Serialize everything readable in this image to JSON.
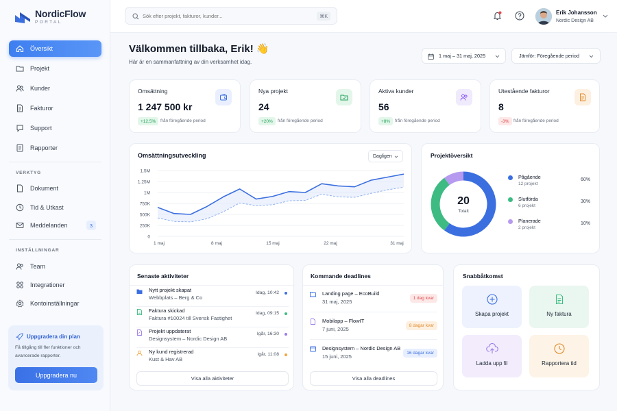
{
  "app": {
    "name": "NordicFlow",
    "sub": "PORTAL"
  },
  "search": {
    "placeholder": "Sök efter projekt, fakturor, kunder...",
    "shortcut": "⌘K"
  },
  "user": {
    "name": "Erik Johansson",
    "company": "Nordic Design AB"
  },
  "nav_main": [
    {
      "label": "Översikt",
      "icon": "home-icon"
    },
    {
      "label": "Projekt",
      "icon": "folder-icon"
    },
    {
      "label": "Kunder",
      "icon": "users-icon"
    },
    {
      "label": "Fakturor",
      "icon": "invoice-icon"
    },
    {
      "label": "Support",
      "icon": "help-icon"
    },
    {
      "label": "Rapporter",
      "icon": "report-icon"
    }
  ],
  "tools_title": "VERKTYG",
  "nav_tools": [
    {
      "label": "Dokument",
      "icon": "document-icon"
    },
    {
      "label": "Tid & Utkast",
      "icon": "clock-icon"
    },
    {
      "label": "Meddelanden",
      "icon": "mail-icon",
      "badge": "3"
    }
  ],
  "settings_title": "INSTÄLLNINGAR",
  "nav_settings": [
    {
      "label": "Team",
      "icon": "team-icon"
    },
    {
      "label": "Integrationer",
      "icon": "integrations-icon"
    },
    {
      "label": "Kontoinställningar",
      "icon": "settings-icon"
    }
  ],
  "upgrade": {
    "title": "Uppgradera din plan",
    "text1": "Få tillgång till fler funktioner och",
    "text2": "avancerade rapporter.",
    "button": "Uppgradera nu"
  },
  "welcome": {
    "title": "Välkommen tillbaka, Erik! 👋",
    "subtitle": "Här är en sammanfattning av din verksamhet idag."
  },
  "filters": {
    "date_range": "1 maj – 31 maj, 2025",
    "compare": "Jämför: Föregående period"
  },
  "kpis": [
    {
      "title": "Omsättning",
      "value": "1 247 500 kr",
      "change": "+12,5%",
      "note": "från föregående period",
      "positive": true
    },
    {
      "title": "Nya projekt",
      "value": "24",
      "change": "+20%",
      "note": "från föregående period",
      "positive": true
    },
    {
      "title": "Aktiva kunder",
      "value": "56",
      "change": "+8%",
      "note": "från föregående period",
      "positive": true
    },
    {
      "title": "Utestående fakturor",
      "value": "8",
      "change": "-3%",
      "note": "från föregående period",
      "positive": false
    }
  ],
  "revenue_chart": {
    "title": "Omsättningsutveckling",
    "period": "Dagligen"
  },
  "chart_data": [
    {
      "type": "line",
      "title": "Omsättningsutveckling",
      "y_ticks": [
        "1.5M",
        "1.25M",
        "1M",
        "750K",
        "500K",
        "250K",
        "0"
      ],
      "x_ticks": [
        "1 maj",
        "8 maj",
        "15 maj",
        "22 maj",
        "31 maj"
      ],
      "ylim": [
        0,
        1500000
      ],
      "x": [
        1,
        3,
        5,
        7,
        9,
        11,
        13,
        15,
        17,
        19,
        21,
        23,
        25,
        27,
        29,
        31
      ],
      "series": [
        {
          "style": "solid",
          "color": "#3b6fe0",
          "values": [
            660000,
            520000,
            500000,
            680000,
            900000,
            1080000,
            850000,
            910000,
            1020000,
            1000000,
            1200000,
            1150000,
            1130000,
            1280000,
            1350000,
            1420000
          ]
        },
        {
          "style": "dashed",
          "color": "#8fb0f0",
          "values": [
            420000,
            340000,
            330000,
            400000,
            560000,
            760000,
            700000,
            720000,
            810000,
            820000,
            960000,
            900000,
            890000,
            980000,
            1060000,
            1120000
          ]
        }
      ]
    },
    {
      "type": "pie",
      "title": "Projektöversikt",
      "total": "20",
      "total_label": "Totalt",
      "slices": [
        {
          "label": "Pågående",
          "sub": "12 projekt",
          "percent": 60,
          "color": "#3b6fe0"
        },
        {
          "label": "Slutförda",
          "sub": "6 projekt",
          "percent": 30,
          "color": "#3dbb82"
        },
        {
          "label": "Planerade",
          "sub": "2 projekt",
          "percent": 10,
          "color": "#b59af0"
        }
      ]
    }
  ],
  "activities": {
    "title": "Senaste aktiviteter",
    "items": [
      {
        "t1": "Nytt projekt skapat",
        "t2": "Webbplats – Berg & Co",
        "time": "Idag, 10:42",
        "color": "#3b6fe0"
      },
      {
        "t1": "Faktura skickad",
        "t2": "Faktura #10024 till Svensk Fastighet",
        "time": "Idag, 09:15",
        "color": "#3dbb82"
      },
      {
        "t1": "Projekt uppdaterat",
        "t2": "Designsystem – Nordic Design AB",
        "time": "Igår, 16:30",
        "color": "#9b7ce8"
      },
      {
        "t1": "Ny kund registrerad",
        "t2": "Kust & Hav AB",
        "time": "Igår, 11:08",
        "color": "#f0a540"
      }
    ],
    "button": "Visa alla aktiviteter"
  },
  "deadlines": {
    "title": "Kommande deadlines",
    "items": [
      {
        "t1": "Landing page – EcoBuild",
        "t2": "31 maj, 2025",
        "pill": "1 dag kvar",
        "pill_color": "#e04848",
        "pill_bg": "#fde8e8"
      },
      {
        "t1": "Mobilapp – FlowIT",
        "t2": "7 juni, 2025",
        "pill": "8 dagar kvar",
        "pill_color": "#e08a2a",
        "pill_bg": "#fdf0e1"
      },
      {
        "t1": "Designsystem – Nordic Design AB",
        "t2": "15 juni, 2025",
        "pill": "16 dagar kvar",
        "pill_color": "#3b6fe0",
        "pill_bg": "#e7efff"
      }
    ],
    "button": "Visa alla deadlines"
  },
  "quick": {
    "title": "Snabbåtkomst",
    "items": [
      {
        "label": "Skapa projekt",
        "icon": "plus-circle-icon"
      },
      {
        "label": "Ny faktura",
        "icon": "invoice-icon"
      },
      {
        "label": "Ladda upp fil",
        "icon": "upload-icon"
      },
      {
        "label": "Rapportera tid",
        "icon": "clock-icon"
      }
    ]
  }
}
